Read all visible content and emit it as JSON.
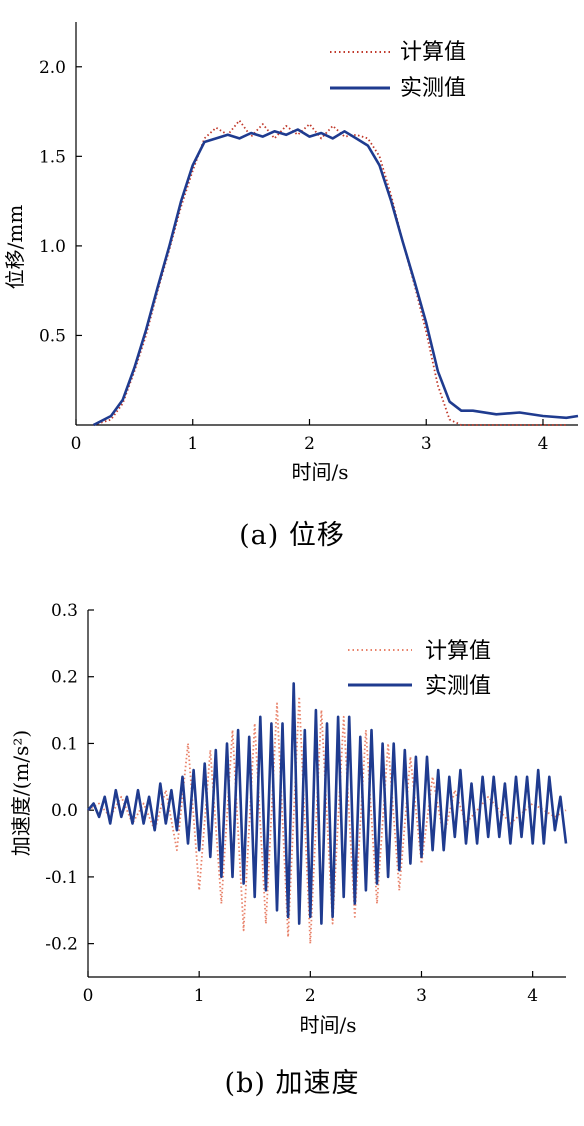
{
  "chart_data": [
    {
      "type": "line",
      "caption": "(a) 位移",
      "xlabel": "时间/s",
      "ylabel": "位移/mm",
      "xlim": [
        0,
        4.3
      ],
      "ylim": [
        0,
        2.25
      ],
      "xticks": [
        "0",
        "1",
        "2",
        "3",
        "4"
      ],
      "yticks": [
        "0.5",
        "1.0",
        "1.5",
        "2.0"
      ],
      "legend_position": "top-right",
      "series": [
        {
          "name": "计算值",
          "style": "dotted",
          "color": "#c0392b",
          "x": [
            0.15,
            0.3,
            0.4,
            0.5,
            0.6,
            0.7,
            0.8,
            0.9,
            1.0,
            1.1,
            1.2,
            1.3,
            1.4,
            1.5,
            1.6,
            1.7,
            1.8,
            1.9,
            2.0,
            2.1,
            2.2,
            2.3,
            2.4,
            2.5,
            2.6,
            2.7,
            2.8,
            2.9,
            3.0,
            3.1,
            3.2,
            3.3,
            3.4,
            3.6,
            3.8,
            4.0,
            4.2
          ],
          "y": [
            0.0,
            0.03,
            0.12,
            0.3,
            0.5,
            0.75,
            0.98,
            1.22,
            1.42,
            1.6,
            1.66,
            1.62,
            1.7,
            1.61,
            1.68,
            1.6,
            1.67,
            1.62,
            1.68,
            1.6,
            1.67,
            1.61,
            1.62,
            1.6,
            1.5,
            1.28,
            1.02,
            0.78,
            0.52,
            0.22,
            0.03,
            0.0,
            0.0,
            0.0,
            0.0,
            0.0,
            0.0
          ]
        },
        {
          "name": "实测值",
          "style": "solid",
          "color": "#1f3b8f",
          "x": [
            0.15,
            0.3,
            0.4,
            0.5,
            0.6,
            0.7,
            0.8,
            0.9,
            1.0,
            1.1,
            1.2,
            1.3,
            1.4,
            1.5,
            1.6,
            1.7,
            1.8,
            1.9,
            2.0,
            2.1,
            2.2,
            2.3,
            2.4,
            2.5,
            2.6,
            2.7,
            2.8,
            2.9,
            3.0,
            3.1,
            3.2,
            3.3,
            3.4,
            3.6,
            3.8,
            4.0,
            4.2,
            4.3
          ],
          "y": [
            0.0,
            0.05,
            0.14,
            0.32,
            0.53,
            0.77,
            1.0,
            1.25,
            1.45,
            1.58,
            1.6,
            1.62,
            1.6,
            1.63,
            1.61,
            1.64,
            1.62,
            1.65,
            1.61,
            1.63,
            1.6,
            1.64,
            1.6,
            1.56,
            1.45,
            1.25,
            1.02,
            0.8,
            0.57,
            0.3,
            0.13,
            0.08,
            0.08,
            0.06,
            0.07,
            0.05,
            0.04,
            0.05
          ]
        }
      ]
    },
    {
      "type": "line",
      "caption": "(b) 加速度",
      "xlabel": "时间/s",
      "ylabel": "加速度/(m/s²)",
      "xlim": [
        0,
        4.3
      ],
      "ylim": [
        -0.25,
        0.3
      ],
      "xticks": [
        "0",
        "1",
        "2",
        "3",
        "4"
      ],
      "yticks": [
        "-0.2",
        "-0.1",
        "0.0",
        "0.1",
        "0.2",
        "0.3"
      ],
      "legend_position": "top-right",
      "series": [
        {
          "name": "计算值",
          "style": "dotted",
          "color": "#e8826a",
          "x": [
            0.0,
            0.1,
            0.2,
            0.3,
            0.4,
            0.5,
            0.6,
            0.7,
            0.8,
            0.9,
            1.0,
            1.1,
            1.2,
            1.3,
            1.4,
            1.5,
            1.6,
            1.7,
            1.8,
            1.9,
            2.0,
            2.1,
            2.2,
            2.3,
            2.4,
            2.5,
            2.6,
            2.7,
            2.8,
            2.9,
            3.0,
            3.1,
            3.2,
            3.3,
            3.4,
            3.6,
            3.8,
            4.0,
            4.2,
            4.3
          ],
          "y": [
            0.0,
            0.01,
            -0.01,
            0.02,
            -0.02,
            0.01,
            -0.03,
            0.03,
            -0.06,
            0.1,
            -0.12,
            0.09,
            -0.14,
            0.12,
            -0.18,
            0.13,
            -0.17,
            0.16,
            -0.19,
            0.17,
            -0.2,
            0.15,
            -0.17,
            0.14,
            -0.16,
            0.12,
            -0.14,
            0.1,
            -0.12,
            0.08,
            -0.08,
            0.05,
            -0.04,
            0.03,
            -0.02,
            0.02,
            -0.02,
            0.01,
            -0.01,
            0.0
          ]
        },
        {
          "name": "实测值",
          "style": "solid",
          "color": "#1f3b8f",
          "x": [
            0.0,
            0.05,
            0.1,
            0.15,
            0.2,
            0.25,
            0.3,
            0.35,
            0.4,
            0.45,
            0.5,
            0.55,
            0.6,
            0.65,
            0.7,
            0.75,
            0.8,
            0.85,
            0.9,
            0.95,
            1.0,
            1.05,
            1.1,
            1.15,
            1.2,
            1.25,
            1.3,
            1.35,
            1.4,
            1.45,
            1.5,
            1.55,
            1.6,
            1.65,
            1.7,
            1.75,
            1.8,
            1.85,
            1.9,
            1.95,
            2.0,
            2.05,
            2.1,
            2.15,
            2.2,
            2.25,
            2.3,
            2.35,
            2.4,
            2.45,
            2.5,
            2.55,
            2.6,
            2.65,
            2.7,
            2.75,
            2.8,
            2.85,
            2.9,
            2.95,
            3.0,
            3.05,
            3.1,
            3.15,
            3.2,
            3.25,
            3.3,
            3.35,
            3.4,
            3.45,
            3.5,
            3.55,
            3.6,
            3.65,
            3.7,
            3.75,
            3.8,
            3.85,
            3.9,
            3.95,
            4.0,
            4.05,
            4.1,
            4.15,
            4.2,
            4.25,
            4.3
          ],
          "y": [
            0.0,
            0.01,
            -0.01,
            0.02,
            -0.02,
            0.03,
            -0.01,
            0.02,
            -0.02,
            0.03,
            -0.02,
            0.02,
            -0.03,
            0.04,
            -0.02,
            0.03,
            -0.03,
            0.05,
            -0.05,
            0.06,
            -0.06,
            0.07,
            -0.07,
            0.09,
            -0.1,
            0.1,
            -0.1,
            0.12,
            -0.11,
            0.11,
            -0.13,
            0.14,
            -0.12,
            0.13,
            -0.15,
            0.13,
            -0.16,
            0.19,
            -0.17,
            0.12,
            -0.16,
            0.15,
            -0.17,
            0.13,
            -0.16,
            0.14,
            -0.13,
            0.14,
            -0.14,
            0.11,
            -0.12,
            0.12,
            -0.11,
            0.1,
            -0.1,
            0.1,
            -0.09,
            0.09,
            -0.08,
            0.08,
            -0.07,
            0.08,
            -0.06,
            0.06,
            -0.06,
            0.05,
            -0.04,
            0.06,
            -0.05,
            0.04,
            -0.05,
            0.05,
            -0.04,
            0.05,
            -0.04,
            0.04,
            -0.05,
            0.05,
            -0.04,
            0.05,
            -0.05,
            0.06,
            -0.05,
            0.05,
            -0.03,
            0.02,
            -0.05
          ]
        }
      ]
    }
  ]
}
